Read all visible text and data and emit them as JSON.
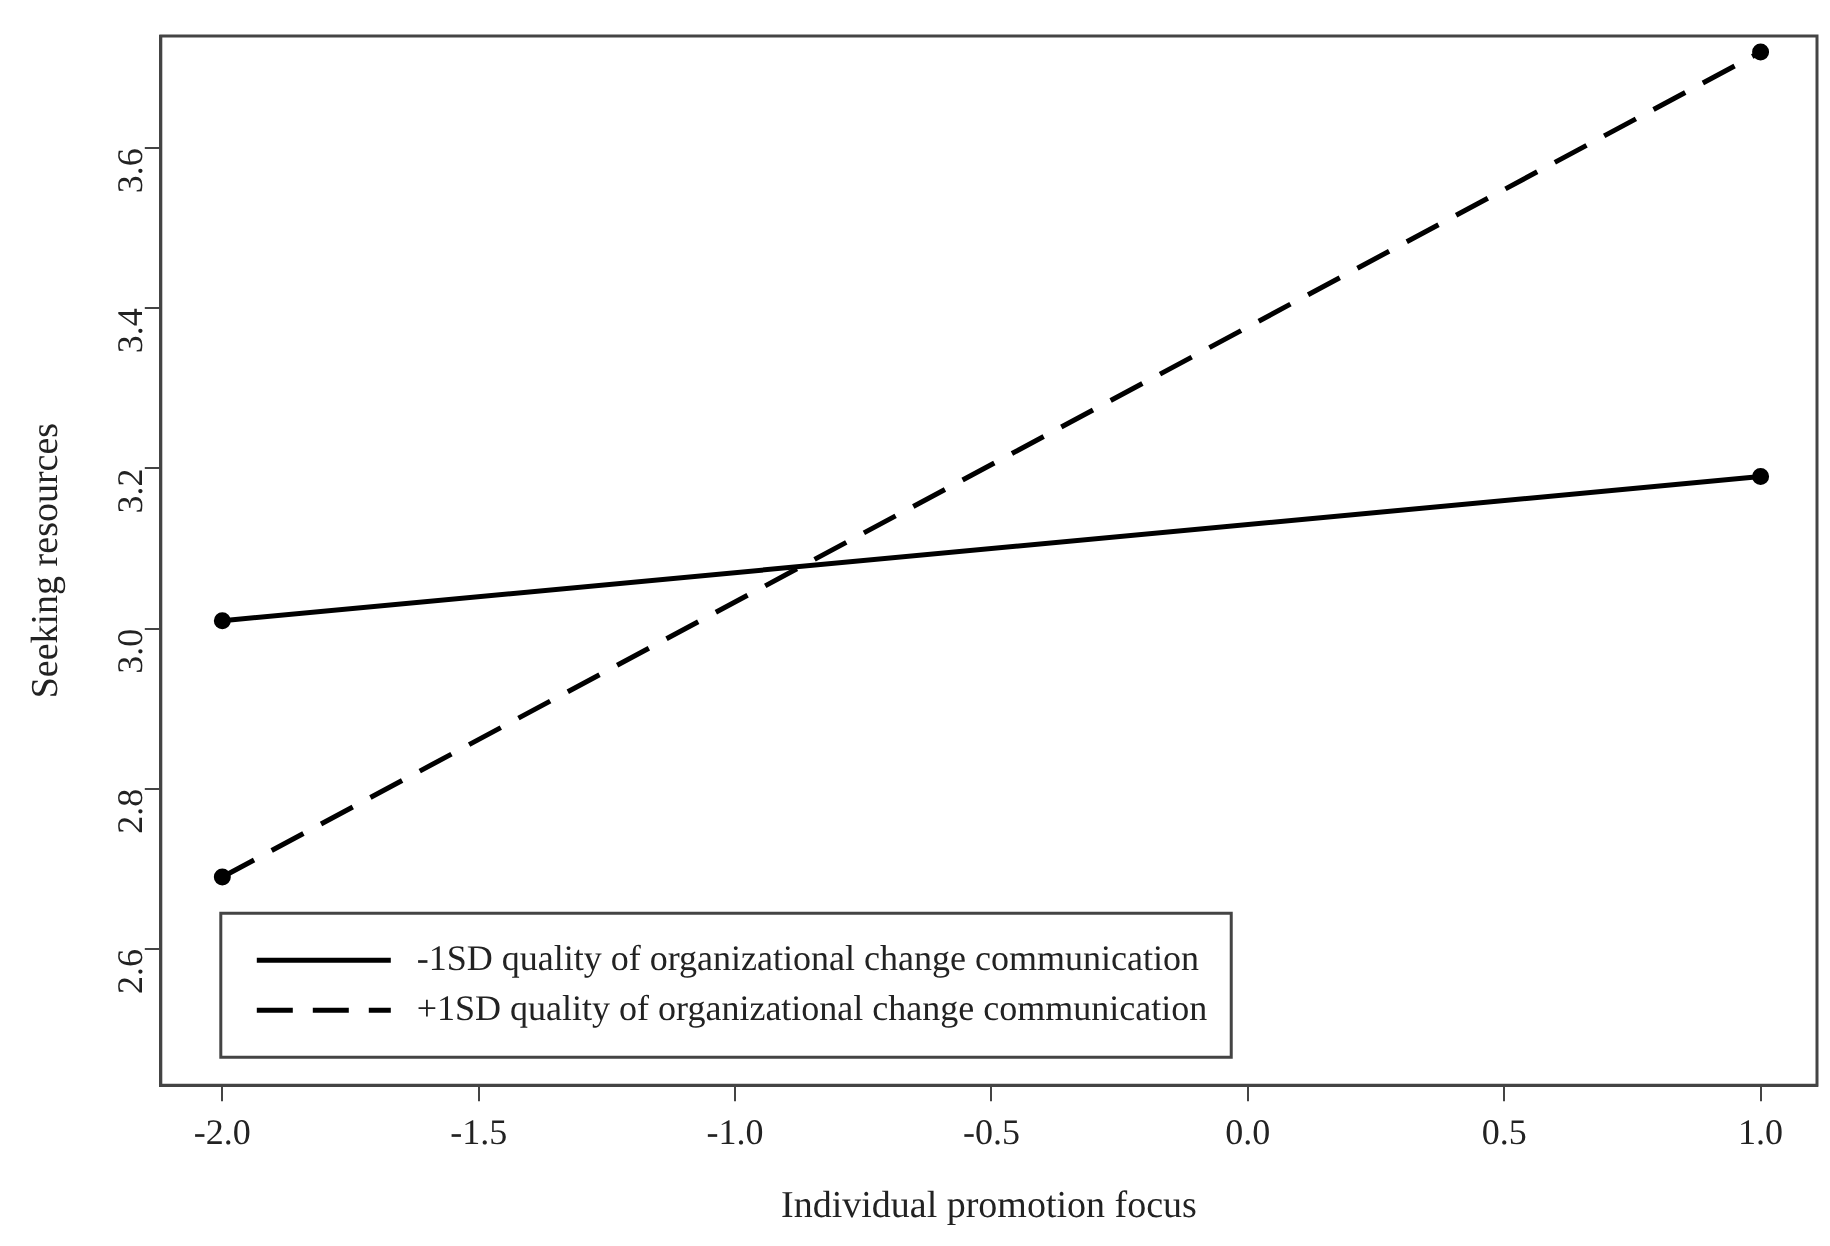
{
  "chart_data": {
    "type": "line",
    "xlabel": "Individual promotion focus",
    "ylabel": "Seeking resources",
    "x": [
      -2.0,
      1.0
    ],
    "series": [
      {
        "name": "-1SD quality of organizational change communication",
        "color": "#000000",
        "values": [
          3.01,
          3.19
        ],
        "line_style": "solid"
      },
      {
        "name": "+1SD quality of organizational change communication",
        "color": "#000000",
        "values": [
          2.69,
          3.72
        ],
        "line_style": "dashed"
      }
    ],
    "xlim": [
      -2.12,
      1.11
    ],
    "xticks": [
      {
        "value": -2,
        "label": "-2.0"
      },
      -1.5,
      {
        "value": -1,
        "label": "-1.0"
      },
      -0.5,
      {
        "value": 0,
        "label": "0.0"
      },
      0.5,
      {
        "value": 1,
        "label": "1.0"
      }
    ],
    "ylim": [
      2.43,
      3.74
    ],
    "yticks": [
      2.6,
      2.8,
      {
        "value": 3,
        "label": "3.0"
      },
      3.2,
      3.4,
      3.6
    ],
    "grid": false,
    "legend": "bottom left",
    "marker": "circle"
  }
}
